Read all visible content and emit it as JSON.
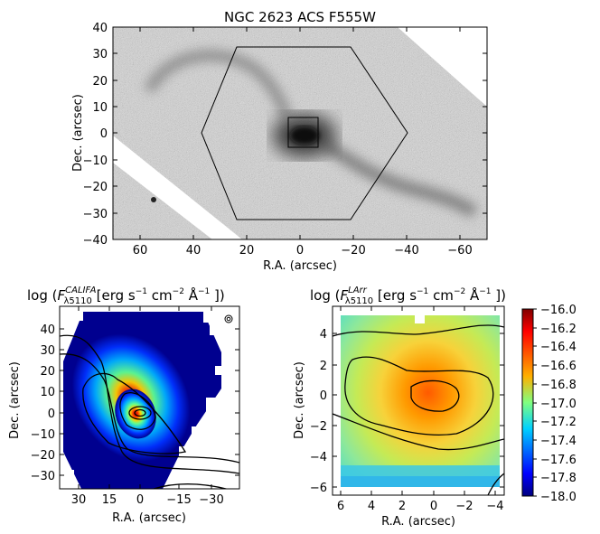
{
  "top": {
    "title": "NGC 2623  ACS F555W",
    "xlabel": "R.A. (arcsec)",
    "ylabel": "Dec. (arcsec)",
    "xticks": [
      "60",
      "40",
      "20",
      "0",
      "−20",
      "−40",
      "−60"
    ],
    "yticks": [
      "40",
      "30",
      "20",
      "10",
      "0",
      "−10",
      "−20",
      "−30",
      "−40"
    ]
  },
  "left": {
    "title_prefix": "log (",
    "title_F": "F",
    "title_sub": "λ5110",
    "title_sup": "CALIFA",
    "title_suffix": "  [erg s",
    "unit_exp1": "−1",
    "unit_cm": " cm",
    "unit_exp2": "−2",
    "unit_A": " Å",
    "unit_exp3": "−1",
    "title_close": " ])",
    "xlabel": "R.A. (arcsec)",
    "ylabel": "Dec. (arcsec)",
    "xticks": [
      "30",
      "15",
      "0",
      "−15",
      "−30"
    ],
    "yticks": [
      "40",
      "30",
      "20",
      "10",
      "0",
      "−10",
      "−20",
      "−30"
    ]
  },
  "right": {
    "title_prefix": "log (",
    "title_F": "F",
    "title_sub": "λ5110",
    "title_sup": "LArr",
    "title_suffix": "  [erg s",
    "unit_exp1": "−1",
    "unit_cm": " cm",
    "unit_exp2": "−2",
    "unit_A": " Å",
    "unit_exp3": "−1",
    "title_close": " ])",
    "xlabel": "R.A. (arcsec)",
    "ylabel": "Dec. (arcsec)",
    "xticks": [
      "6",
      "4",
      "2",
      "0",
      "−2",
      "−4"
    ],
    "yticks": [
      "4",
      "2",
      "0",
      "−2",
      "−4",
      "−6"
    ]
  },
  "colorbar": {
    "ticks": [
      "−16.0",
      "−16.2",
      "−16.4",
      "−16.6",
      "−16.8",
      "−17.0",
      "−17.2",
      "−17.4",
      "−17.6",
      "−17.8",
      "−18.0"
    ]
  }
}
